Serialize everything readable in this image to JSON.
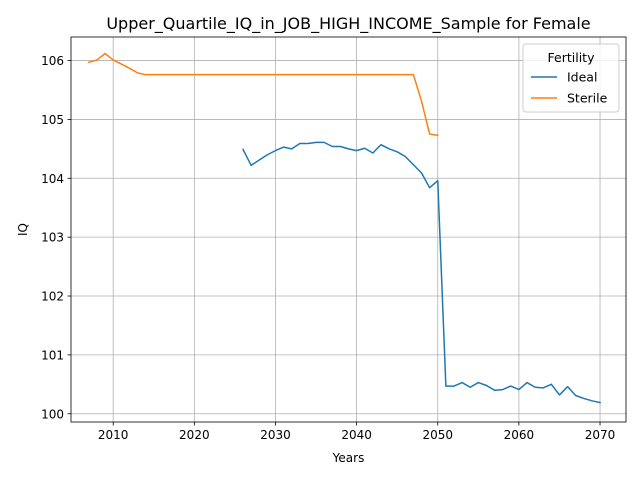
{
  "chart_data": {
    "type": "line",
    "title": "Upper_Quartile_IQ_in_JOB_HIGH_INCOME_Sample for Female",
    "xlabel": "Years",
    "ylabel": "IQ",
    "xlim": [
      2004.8,
      2073.2
    ],
    "ylim": [
      99.86,
      106.4
    ],
    "xticks": [
      2010,
      2020,
      2030,
      2040,
      2050,
      2060,
      2070
    ],
    "yticks": [
      100,
      101,
      102,
      103,
      104,
      105,
      106
    ],
    "grid": true,
    "legend": {
      "title": "Fertility",
      "placement": "top-right"
    },
    "series": [
      {
        "name": "Ideal",
        "color": "#1f77b4",
        "x": [
          2026,
          2027,
          2028,
          2029,
          2030,
          2031,
          2032,
          2033,
          2034,
          2035,
          2036,
          2037,
          2038,
          2039,
          2040,
          2041,
          2042,
          2043,
          2044,
          2045,
          2046,
          2047,
          2048,
          2049,
          2050,
          2051,
          2052,
          2053,
          2054,
          2055,
          2056,
          2057,
          2058,
          2059,
          2060,
          2061,
          2062,
          2063,
          2064,
          2065,
          2066,
          2067,
          2068,
          2069,
          2070
        ],
        "y": [
          104.49,
          104.22,
          104.31,
          104.4,
          104.47,
          104.53,
          104.5,
          104.59,
          104.59,
          104.61,
          104.61,
          104.54,
          104.54,
          104.5,
          104.47,
          104.51,
          104.43,
          104.57,
          104.5,
          104.45,
          104.37,
          104.23,
          104.09,
          103.84,
          103.96,
          100.47,
          100.47,
          100.53,
          100.45,
          100.53,
          100.48,
          100.4,
          100.41,
          100.47,
          100.41,
          100.53,
          100.45,
          100.44,
          100.5,
          100.32,
          100.46,
          100.31,
          100.26,
          100.22,
          100.19
        ]
      },
      {
        "name": "Sterile",
        "color": "#ff7f0e",
        "x": [
          2007,
          2008,
          2009,
          2010,
          2011,
          2012,
          2013,
          2014,
          2015,
          2016,
          2017,
          2018,
          2019,
          2020,
          2021,
          2022,
          2023,
          2024,
          2025,
          2026,
          2027,
          2028,
          2029,
          2030,
          2031,
          2032,
          2033,
          2034,
          2035,
          2036,
          2037,
          2038,
          2039,
          2040,
          2041,
          2042,
          2043,
          2044,
          2045,
          2046,
          2047,
          2048,
          2049,
          2050
        ],
        "y": [
          105.97,
          106.01,
          106.12,
          106.01,
          105.94,
          105.87,
          105.79,
          105.76,
          105.76,
          105.76,
          105.76,
          105.76,
          105.76,
          105.76,
          105.76,
          105.76,
          105.76,
          105.76,
          105.76,
          105.76,
          105.76,
          105.76,
          105.76,
          105.76,
          105.76,
          105.76,
          105.76,
          105.76,
          105.76,
          105.76,
          105.76,
          105.76,
          105.76,
          105.76,
          105.76,
          105.76,
          105.76,
          105.76,
          105.76,
          105.76,
          105.76,
          105.31,
          104.75,
          104.73
        ]
      }
    ]
  }
}
